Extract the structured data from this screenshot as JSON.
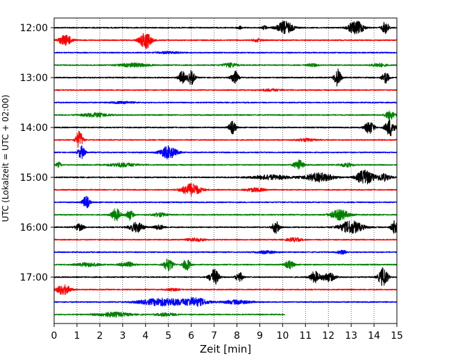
{
  "chart_data": {
    "type": "line",
    "title": "",
    "xlabel": "Zeit  [min]",
    "ylabel": "UTC (Lokalzeit = UTC + 02:00)",
    "xlim": [
      0,
      15
    ],
    "x_ticks": [
      0,
      1,
      2,
      3,
      4,
      5,
      6,
      7,
      8,
      9,
      10,
      11,
      12,
      13,
      14,
      15
    ],
    "x_tick_labels": [
      "0",
      "1",
      "2",
      "3",
      "4",
      "5",
      "6",
      "7",
      "8",
      "9",
      "10",
      "11",
      "12",
      "13",
      "14",
      "15"
    ],
    "grid_x": true,
    "grid_style": "dotted",
    "y_tick_labels": [
      "12:00",
      "13:00",
      "14:00",
      "15:00",
      "16:00",
      "17:00"
    ],
    "y_tick_rows": [
      0,
      4,
      8,
      12,
      16,
      20
    ],
    "color_cycle": [
      "#000000",
      "#ff0000",
      "#0000ff",
      "#008000"
    ],
    "traces": [
      {
        "start": "12:00",
        "end_min": 15,
        "events": [
          {
            "t": 8.1,
            "a": 0.25,
            "d": 0.1
          },
          {
            "t": 9.2,
            "a": 0.3,
            "d": 0.1
          },
          {
            "t": 10.1,
            "a": 1.0,
            "d": 0.35
          },
          {
            "t": 13.1,
            "a": 0.9,
            "d": 0.25
          },
          {
            "t": 13.4,
            "a": 0.6,
            "d": 0.2
          },
          {
            "t": 14.5,
            "a": 1.0,
            "d": 0.15
          }
        ]
      },
      {
        "start": "12:15",
        "end_min": 15,
        "events": [
          {
            "t": 0.5,
            "a": 0.8,
            "d": 0.3
          },
          {
            "t": 4.0,
            "a": 1.4,
            "d": 0.25
          },
          {
            "t": 8.9,
            "a": 0.25,
            "d": 0.2
          }
        ]
      },
      {
        "start": "12:30",
        "end_min": 15,
        "events": [
          {
            "t": 5.0,
            "a": 0.15,
            "d": 0.5
          }
        ]
      },
      {
        "start": "12:45",
        "end_min": 15,
        "events": [
          {
            "t": 3.5,
            "a": 0.3,
            "d": 0.6
          },
          {
            "t": 7.7,
            "a": 0.35,
            "d": 0.3
          },
          {
            "t": 11.3,
            "a": 0.25,
            "d": 0.2
          },
          {
            "t": 14.2,
            "a": 0.3,
            "d": 0.3
          }
        ]
      },
      {
        "start": "13:00",
        "end_min": 15,
        "events": [
          {
            "t": 5.6,
            "a": 1.0,
            "d": 0.15
          },
          {
            "t": 6.0,
            "a": 1.1,
            "d": 0.15
          },
          {
            "t": 7.9,
            "a": 1.1,
            "d": 0.15
          },
          {
            "t": 12.4,
            "a": 1.4,
            "d": 0.15
          },
          {
            "t": 14.5,
            "a": 0.9,
            "d": 0.15
          }
        ]
      },
      {
        "start": "13:15",
        "end_min": 15,
        "events": [
          {
            "t": 9.5,
            "a": 0.15,
            "d": 0.5
          }
        ]
      },
      {
        "start": "13:30",
        "end_min": 15,
        "events": [
          {
            "t": 3.0,
            "a": 0.15,
            "d": 0.5
          }
        ]
      },
      {
        "start": "13:45",
        "end_min": 15,
        "events": [
          {
            "t": 1.8,
            "a": 0.3,
            "d": 0.6
          },
          {
            "t": 14.7,
            "a": 0.7,
            "d": 0.2
          }
        ]
      },
      {
        "start": "14:00",
        "end_min": 15,
        "events": [
          {
            "t": 7.8,
            "a": 1.0,
            "d": 0.15
          },
          {
            "t": 13.8,
            "a": 1.0,
            "d": 0.2
          },
          {
            "t": 14.7,
            "a": 1.4,
            "d": 0.2
          }
        ]
      },
      {
        "start": "14:15",
        "end_min": 15,
        "events": [
          {
            "t": 1.1,
            "a": 1.4,
            "d": 0.15
          },
          {
            "t": 11.0,
            "a": 0.2,
            "d": 0.4
          }
        ]
      },
      {
        "start": "14:30",
        "end_min": 15,
        "events": [
          {
            "t": 1.2,
            "a": 1.0,
            "d": 0.15
          },
          {
            "t": 5.0,
            "a": 1.0,
            "d": 0.35
          }
        ]
      },
      {
        "start": "14:45",
        "end_min": 15,
        "events": [
          {
            "t": 0.2,
            "a": 0.4,
            "d": 0.1
          },
          {
            "t": 3.0,
            "a": 0.3,
            "d": 0.6
          },
          {
            "t": 10.7,
            "a": 0.8,
            "d": 0.2
          },
          {
            "t": 12.8,
            "a": 0.3,
            "d": 0.3
          }
        ]
      },
      {
        "start": "15:00",
        "end_min": 15,
        "events": [
          {
            "t": 9.5,
            "a": 0.35,
            "d": 0.8
          },
          {
            "t": 11.6,
            "a": 0.7,
            "d": 0.6
          },
          {
            "t": 13.6,
            "a": 1.2,
            "d": 0.35
          },
          {
            "t": 14.4,
            "a": 0.6,
            "d": 0.3
          }
        ]
      },
      {
        "start": "15:15",
        "end_min": 15,
        "events": [
          {
            "t": 6.0,
            "a": 1.0,
            "d": 0.4
          },
          {
            "t": 8.8,
            "a": 0.3,
            "d": 0.4
          }
        ]
      },
      {
        "start": "15:30",
        "end_min": 15,
        "events": [
          {
            "t": 1.4,
            "a": 1.0,
            "d": 0.15
          }
        ]
      },
      {
        "start": "15:45",
        "end_min": 15,
        "events": [
          {
            "t": 2.7,
            "a": 1.0,
            "d": 0.2
          },
          {
            "t": 3.3,
            "a": 0.8,
            "d": 0.15
          },
          {
            "t": 4.6,
            "a": 0.3,
            "d": 0.3
          },
          {
            "t": 12.5,
            "a": 0.8,
            "d": 0.4
          }
        ]
      },
      {
        "start": "16:00",
        "end_min": 15,
        "events": [
          {
            "t": 1.1,
            "a": 0.5,
            "d": 0.2
          },
          {
            "t": 3.6,
            "a": 0.8,
            "d": 0.3
          },
          {
            "t": 4.6,
            "a": 0.4,
            "d": 0.2
          },
          {
            "t": 9.7,
            "a": 1.0,
            "d": 0.15
          },
          {
            "t": 13.0,
            "a": 1.0,
            "d": 0.5
          },
          {
            "t": 14.9,
            "a": 1.0,
            "d": 0.15
          }
        ]
      },
      {
        "start": "16:15",
        "end_min": 15,
        "events": [
          {
            "t": 6.2,
            "a": 0.25,
            "d": 0.4
          },
          {
            "t": 10.5,
            "a": 0.3,
            "d": 0.3
          }
        ]
      },
      {
        "start": "16:30",
        "end_min": 15,
        "events": [
          {
            "t": 9.3,
            "a": 0.2,
            "d": 0.4
          },
          {
            "t": 12.6,
            "a": 0.3,
            "d": 0.2
          }
        ]
      },
      {
        "start": "16:45",
        "end_min": 15,
        "events": [
          {
            "t": 1.5,
            "a": 0.3,
            "d": 0.5
          },
          {
            "t": 3.2,
            "a": 0.4,
            "d": 0.3
          },
          {
            "t": 5.0,
            "a": 1.0,
            "d": 0.2
          },
          {
            "t": 5.8,
            "a": 1.0,
            "d": 0.15
          },
          {
            "t": 10.3,
            "a": 0.6,
            "d": 0.2
          }
        ]
      },
      {
        "start": "17:00",
        "end_min": 15,
        "events": [
          {
            "t": 7.0,
            "a": 1.3,
            "d": 0.2
          },
          {
            "t": 8.1,
            "a": 0.8,
            "d": 0.15
          },
          {
            "t": 11.4,
            "a": 0.9,
            "d": 0.2
          },
          {
            "t": 12.0,
            "a": 0.7,
            "d": 0.3
          },
          {
            "t": 14.4,
            "a": 1.5,
            "d": 0.2
          }
        ]
      },
      {
        "start": "17:15",
        "end_min": 15,
        "events": [
          {
            "t": 0.4,
            "a": 0.8,
            "d": 0.3
          },
          {
            "t": 5.2,
            "a": 0.2,
            "d": 0.3
          }
        ]
      },
      {
        "start": "17:30",
        "end_min": 15,
        "events": [
          {
            "t": 4.8,
            "a": 0.6,
            "d": 1.0
          },
          {
            "t": 6.2,
            "a": 0.6,
            "d": 0.5
          },
          {
            "t": 8.0,
            "a": 0.3,
            "d": 0.6
          }
        ]
      },
      {
        "start": "17:45",
        "end_min": 10.1,
        "events": [
          {
            "t": 2.6,
            "a": 0.35,
            "d": 0.7
          },
          {
            "t": 4.9,
            "a": 0.25,
            "d": 0.4
          }
        ]
      }
    ]
  }
}
